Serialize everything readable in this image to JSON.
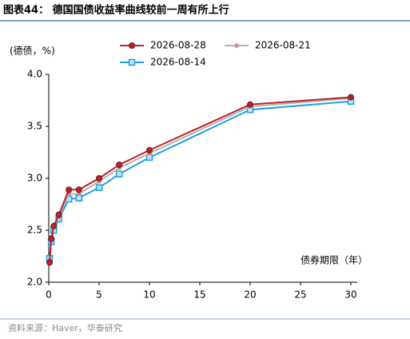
{
  "chart_data": {
    "type": "line",
    "title": "图表44：  德国国债收益率曲线较前一周有所上行",
    "y_label": "(德债，%)",
    "x_label": "债券期限（年）",
    "source": "资料来源：Haver，华泰研究",
    "x": [
      0.08,
      0.25,
      0.5,
      1,
      2,
      3,
      5,
      7,
      10,
      20,
      30
    ],
    "series": [
      {
        "name": "2026-08-28",
        "color": "#b8232c",
        "values": [
          2.19,
          2.42,
          2.54,
          2.65,
          2.89,
          2.89,
          3.0,
          3.13,
          3.27,
          3.71,
          3.78
        ]
      },
      {
        "name": "2026-08-21",
        "color": "#b4b4b4",
        "values": [
          2.21,
          2.4,
          2.55,
          2.63,
          2.85,
          2.85,
          2.97,
          3.1,
          3.24,
          3.69,
          3.77
        ]
      },
      {
        "name": "2026-08-14",
        "color": "#1e9fe0",
        "values": [
          2.23,
          2.39,
          2.5,
          2.61,
          2.8,
          2.81,
          2.91,
          3.04,
          3.2,
          3.66,
          3.74
        ]
      }
    ],
    "xlim": [
      0,
      30
    ],
    "xticks": [
      0,
      5,
      10,
      15,
      20,
      25,
      30
    ],
    "ylim": [
      2,
      4
    ],
    "yticks": [
      {
        "value": 2,
        "label": "2.0"
      },
      {
        "value": 2.5,
        "label": "2.5"
      },
      {
        "value": 3,
        "label": "3.0"
      },
      {
        "value": 3.5,
        "label": "3.5"
      },
      {
        "value": 4,
        "label": "4.0"
      }
    ],
    "grid": false
  }
}
